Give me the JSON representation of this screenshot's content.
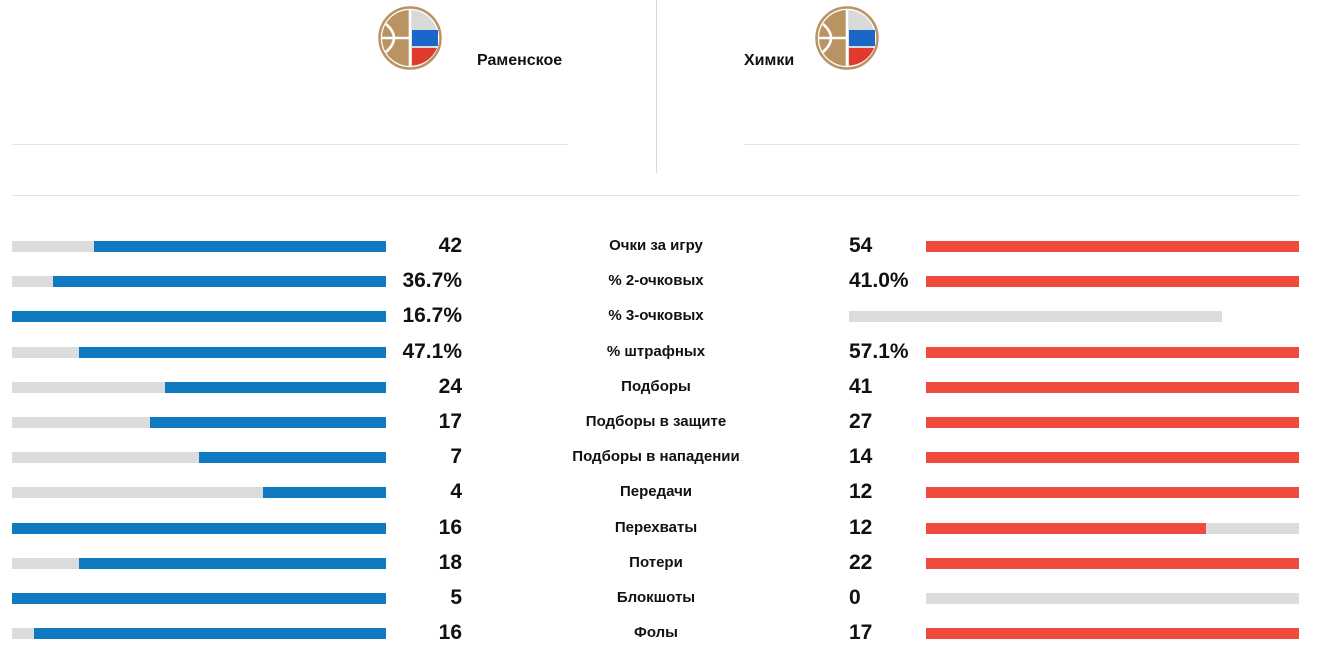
{
  "teams": {
    "home": {
      "name": "Раменское",
      "logo_icon": "basketball-flag-icon"
    },
    "away": {
      "name": "Химки",
      "logo_icon": "basketball-flag-icon"
    }
  },
  "colors": {
    "home_accent": "#0f7ac0",
    "away_accent": "#ee4b3e",
    "bar_track": "#dcdcdc",
    "logo_ring": "#b99362"
  },
  "stats": [
    {
      "label": "Очки за игру",
      "home": "42",
      "away": "54",
      "home_fill": 0.78,
      "away_fill": 1.0
    },
    {
      "label": "% 2-очковых",
      "home": "36.7%",
      "away": "41.0%",
      "home_fill": 0.89,
      "away_fill": 1.0
    },
    {
      "label": "% 3-очковых",
      "home": "16.7%",
      "away": "",
      "home_fill": 1.0,
      "away_fill": 0.0,
      "away_track_short": true
    },
    {
      "label": "% штрафных",
      "home": "47.1%",
      "away": "57.1%",
      "home_fill": 0.82,
      "away_fill": 1.0
    },
    {
      "label": "Подборы",
      "home": "24",
      "away": "41",
      "home_fill": 0.59,
      "away_fill": 1.0
    },
    {
      "label": "Подборы в защите",
      "home": "17",
      "away": "27",
      "home_fill": 0.63,
      "away_fill": 1.0
    },
    {
      "label": "Подборы в нападении",
      "home": "7",
      "away": "14",
      "home_fill": 0.5,
      "away_fill": 1.0
    },
    {
      "label": "Передачи",
      "home": "4",
      "away": "12",
      "home_fill": 0.33,
      "away_fill": 1.0
    },
    {
      "label": "Перехваты",
      "home": "16",
      "away": "12",
      "home_fill": 1.0,
      "away_fill": 0.75
    },
    {
      "label": "Потери",
      "home": "18",
      "away": "22",
      "home_fill": 0.82,
      "away_fill": 1.0
    },
    {
      "label": "Блокшоты",
      "home": "5",
      "away": "0",
      "home_fill": 1.0,
      "away_fill": 0.0
    },
    {
      "label": "Фолы",
      "home": "16",
      "away": "17",
      "home_fill": 0.94,
      "away_fill": 1.0
    }
  ]
}
